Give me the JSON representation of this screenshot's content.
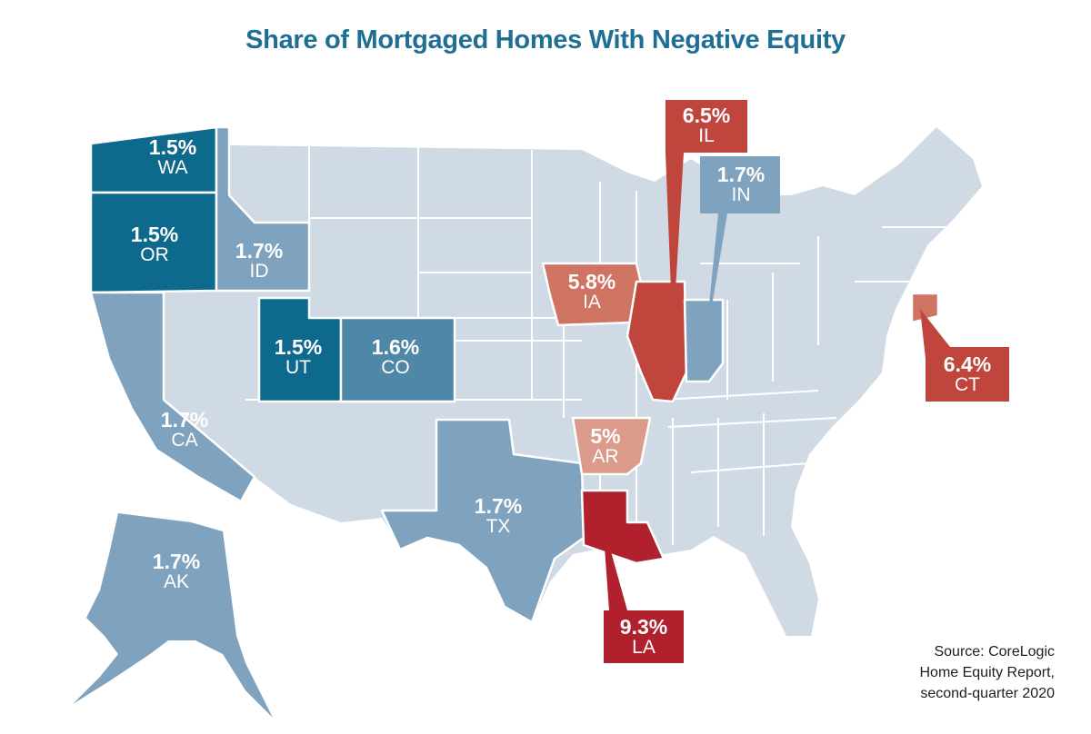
{
  "title": "Share of Mortgaged Homes With Negative Equity",
  "colors": {
    "background": "#ffffff",
    "title": "#1f6e93",
    "other_states": "#cfdae4",
    "blue_dark": "#0e6a8d",
    "blue_mid": "#4f87a8",
    "blue_light": "#7fa3bf",
    "red_dark": "#b0202d",
    "red_mid": "#c0453d",
    "red_light": "#cf7363",
    "red_pale": "#dc9b8a"
  },
  "states": [
    {
      "code": "WA",
      "value": "1.5%"
    },
    {
      "code": "OR",
      "value": "1.5%"
    },
    {
      "code": "ID",
      "value": "1.7%"
    },
    {
      "code": "UT",
      "value": "1.5%"
    },
    {
      "code": "CO",
      "value": "1.6%"
    },
    {
      "code": "CA",
      "value": "1.7%"
    },
    {
      "code": "AK",
      "value": "1.7%"
    },
    {
      "code": "TX",
      "value": "1.7%"
    },
    {
      "code": "IA",
      "value": "5.8%"
    },
    {
      "code": "AR",
      "value": "5%"
    },
    {
      "code": "LA",
      "value": "9.3%"
    },
    {
      "code": "IL",
      "value": "6.5%"
    },
    {
      "code": "IN",
      "value": "1.7%"
    },
    {
      "code": "CT",
      "value": "6.4%"
    }
  ],
  "source": {
    "prefix": "Source: ",
    "publisher": "CoreLogic",
    "report": "Home Equity Report,",
    "period": "second-quarter 2020"
  }
}
